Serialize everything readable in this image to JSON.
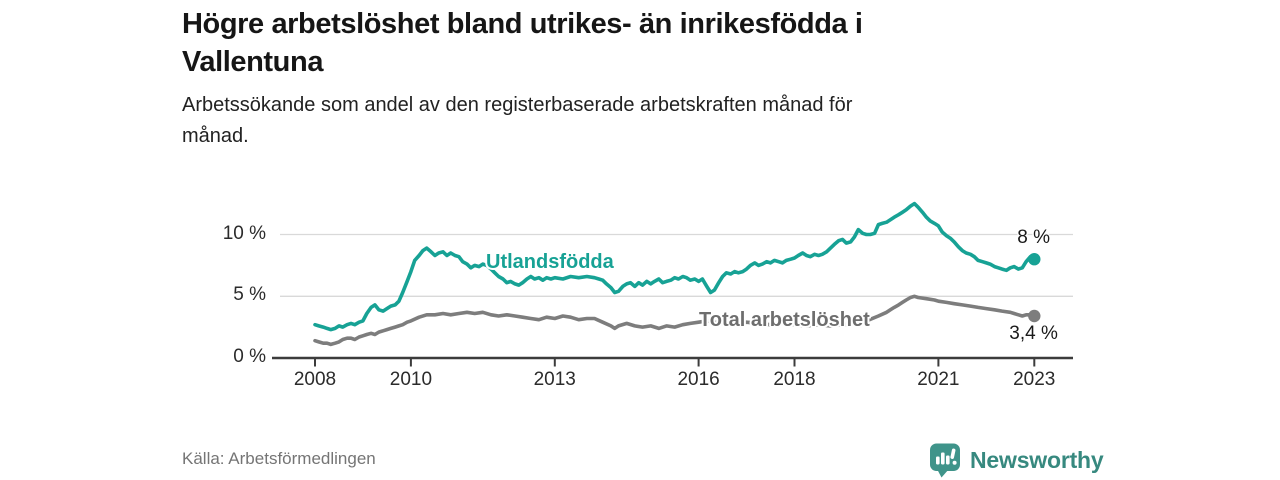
{
  "header": {
    "title": "Högre arbetslöshet bland utrikes- än inrikesfödda i Vallentuna",
    "title_lines": [
      "Högre arbetslöshet bland utrikes- än inrikesfödda i",
      "Vallentuna"
    ],
    "subtitle": "Arbetssökande som andel av den registerbaserade arbetskraften månad för månad.",
    "subtitle_lines": [
      "Arbetssökande som andel av den registerbaserade arbetskraften månad för",
      "månad."
    ]
  },
  "footer": {
    "source": "Källa: Arbetsförmedlingen"
  },
  "logo": {
    "name": "Newsworthy",
    "icon": "speech-bubble-bar-chart",
    "icon_color": "#3f948a",
    "text_color": "#37897f"
  },
  "chart_data": {
    "type": "line",
    "title": "Högre arbetslöshet bland utrikes- än inrikesfödda i Vallentuna",
    "subtitle": "Arbetssökande som andel av den registerbaserade arbetskraften månad för månad.",
    "unit": "%",
    "grid": "horizontal-only",
    "legend_position": "inline-on-lines",
    "x_axis": {
      "range_years": [
        2008,
        2023
      ],
      "ticks": [
        2008,
        2010,
        2013,
        2016,
        2018,
        2021,
        2023
      ],
      "tick_labels": [
        "2008",
        "2010",
        "2013",
        "2016",
        "2018",
        "2021",
        "2023"
      ]
    },
    "y_axis": {
      "range": [
        0,
        13.5
      ],
      "ticks": [
        0,
        5,
        10
      ],
      "tick_labels": [
        "0 %",
        "5 %",
        "10 %"
      ]
    },
    "series": [
      {
        "name": "Utlandsfödda",
        "slug": "utlandsfodda",
        "color": "#17a295",
        "label_color": "#17a295",
        "label_at": [
          2011.57,
          7.6
        ],
        "end_value": 8.0,
        "end_label": "8 %",
        "points": [
          [
            2008.0,
            2.7
          ],
          [
            2008.08,
            2.6
          ],
          [
            2008.17,
            2.5
          ],
          [
            2008.25,
            2.4
          ],
          [
            2008.33,
            2.3
          ],
          [
            2008.42,
            2.4
          ],
          [
            2008.5,
            2.6
          ],
          [
            2008.58,
            2.5
          ],
          [
            2008.67,
            2.7
          ],
          [
            2008.75,
            2.8
          ],
          [
            2008.83,
            2.7
          ],
          [
            2008.92,
            2.9
          ],
          [
            2009.0,
            3.0
          ],
          [
            2009.08,
            3.6
          ],
          [
            2009.17,
            4.1
          ],
          [
            2009.25,
            4.3
          ],
          [
            2009.33,
            3.9
          ],
          [
            2009.42,
            3.8
          ],
          [
            2009.5,
            4.0
          ],
          [
            2009.58,
            4.2
          ],
          [
            2009.67,
            4.3
          ],
          [
            2009.75,
            4.6
          ],
          [
            2009.83,
            5.3
          ],
          [
            2009.92,
            6.2
          ],
          [
            2010.0,
            7.0
          ],
          [
            2010.08,
            7.9
          ],
          [
            2010.17,
            8.3
          ],
          [
            2010.25,
            8.7
          ],
          [
            2010.33,
            8.9
          ],
          [
            2010.42,
            8.6
          ],
          [
            2010.5,
            8.3
          ],
          [
            2010.58,
            8.5
          ],
          [
            2010.67,
            8.6
          ],
          [
            2010.75,
            8.3
          ],
          [
            2010.83,
            8.5
          ],
          [
            2010.92,
            8.3
          ],
          [
            2011.0,
            8.2
          ],
          [
            2011.08,
            7.8
          ],
          [
            2011.17,
            7.6
          ],
          [
            2011.25,
            7.3
          ],
          [
            2011.33,
            7.5
          ],
          [
            2011.42,
            7.4
          ],
          [
            2011.5,
            7.6
          ],
          [
            2011.58,
            7.5
          ],
          [
            2011.67,
            7.2
          ],
          [
            2011.75,
            6.9
          ],
          [
            2011.83,
            6.6
          ],
          [
            2011.92,
            6.4
          ],
          [
            2012.0,
            6.1
          ],
          [
            2012.08,
            6.2
          ],
          [
            2012.17,
            6.0
          ],
          [
            2012.25,
            5.9
          ],
          [
            2012.33,
            6.1
          ],
          [
            2012.42,
            6.4
          ],
          [
            2012.5,
            6.6
          ],
          [
            2012.58,
            6.4
          ],
          [
            2012.67,
            6.5
          ],
          [
            2012.75,
            6.3
          ],
          [
            2012.83,
            6.5
          ],
          [
            2012.92,
            6.4
          ],
          [
            2013.0,
            6.5
          ],
          [
            2013.17,
            6.4
          ],
          [
            2013.33,
            6.6
          ],
          [
            2013.5,
            6.5
          ],
          [
            2013.67,
            6.6
          ],
          [
            2013.83,
            6.5
          ],
          [
            2013.92,
            6.4
          ],
          [
            2014.0,
            6.3
          ],
          [
            2014.08,
            6.0
          ],
          [
            2014.17,
            5.7
          ],
          [
            2014.25,
            5.3
          ],
          [
            2014.33,
            5.4
          ],
          [
            2014.42,
            5.8
          ],
          [
            2014.5,
            6.0
          ],
          [
            2014.58,
            6.1
          ],
          [
            2014.67,
            5.8
          ],
          [
            2014.75,
            6.1
          ],
          [
            2014.83,
            5.9
          ],
          [
            2014.92,
            6.2
          ],
          [
            2015.0,
            6.0
          ],
          [
            2015.08,
            6.2
          ],
          [
            2015.17,
            6.4
          ],
          [
            2015.25,
            6.1
          ],
          [
            2015.33,
            6.2
          ],
          [
            2015.42,
            6.3
          ],
          [
            2015.5,
            6.5
          ],
          [
            2015.58,
            6.4
          ],
          [
            2015.67,
            6.6
          ],
          [
            2015.75,
            6.5
          ],
          [
            2015.83,
            6.3
          ],
          [
            2015.92,
            6.4
          ],
          [
            2016.0,
            6.2
          ],
          [
            2016.08,
            6.4
          ],
          [
            2016.17,
            5.8
          ],
          [
            2016.25,
            5.3
          ],
          [
            2016.33,
            5.5
          ],
          [
            2016.42,
            6.1
          ],
          [
            2016.5,
            6.6
          ],
          [
            2016.58,
            6.9
          ],
          [
            2016.67,
            6.8
          ],
          [
            2016.75,
            7.0
          ],
          [
            2016.83,
            6.9
          ],
          [
            2016.92,
            7.0
          ],
          [
            2017.0,
            7.2
          ],
          [
            2017.08,
            7.5
          ],
          [
            2017.17,
            7.7
          ],
          [
            2017.25,
            7.5
          ],
          [
            2017.33,
            7.6
          ],
          [
            2017.42,
            7.8
          ],
          [
            2017.5,
            7.7
          ],
          [
            2017.58,
            7.9
          ],
          [
            2017.67,
            7.8
          ],
          [
            2017.75,
            7.7
          ],
          [
            2017.83,
            7.9
          ],
          [
            2017.92,
            8.0
          ],
          [
            2018.0,
            8.1
          ],
          [
            2018.08,
            8.3
          ],
          [
            2018.17,
            8.5
          ],
          [
            2018.25,
            8.3
          ],
          [
            2018.33,
            8.2
          ],
          [
            2018.42,
            8.4
          ],
          [
            2018.5,
            8.3
          ],
          [
            2018.58,
            8.4
          ],
          [
            2018.67,
            8.6
          ],
          [
            2018.75,
            8.9
          ],
          [
            2018.83,
            9.2
          ],
          [
            2018.92,
            9.5
          ],
          [
            2019.0,
            9.6
          ],
          [
            2019.08,
            9.3
          ],
          [
            2019.17,
            9.4
          ],
          [
            2019.25,
            9.8
          ],
          [
            2019.33,
            10.4
          ],
          [
            2019.42,
            10.1
          ],
          [
            2019.5,
            10.0
          ],
          [
            2019.58,
            10.0
          ],
          [
            2019.67,
            10.1
          ],
          [
            2019.75,
            10.8
          ],
          [
            2019.83,
            10.9
          ],
          [
            2019.92,
            11.0
          ],
          [
            2020.0,
            11.2
          ],
          [
            2020.08,
            11.4
          ],
          [
            2020.17,
            11.6
          ],
          [
            2020.25,
            11.8
          ],
          [
            2020.33,
            12.0
          ],
          [
            2020.42,
            12.3
          ],
          [
            2020.5,
            12.5
          ],
          [
            2020.58,
            12.2
          ],
          [
            2020.67,
            11.8
          ],
          [
            2020.75,
            11.4
          ],
          [
            2020.83,
            11.1
          ],
          [
            2020.92,
            10.9
          ],
          [
            2021.0,
            10.7
          ],
          [
            2021.08,
            10.2
          ],
          [
            2021.17,
            9.9
          ],
          [
            2021.25,
            9.7
          ],
          [
            2021.33,
            9.4
          ],
          [
            2021.42,
            9.0
          ],
          [
            2021.5,
            8.7
          ],
          [
            2021.58,
            8.5
          ],
          [
            2021.67,
            8.4
          ],
          [
            2021.75,
            8.2
          ],
          [
            2021.83,
            7.9
          ],
          [
            2021.92,
            7.8
          ],
          [
            2022.0,
            7.7
          ],
          [
            2022.08,
            7.6
          ],
          [
            2022.17,
            7.4
          ],
          [
            2022.25,
            7.3
          ],
          [
            2022.33,
            7.2
          ],
          [
            2022.42,
            7.1
          ],
          [
            2022.5,
            7.3
          ],
          [
            2022.58,
            7.4
          ],
          [
            2022.67,
            7.2
          ],
          [
            2022.75,
            7.3
          ],
          [
            2022.83,
            7.8
          ],
          [
            2022.92,
            8.2
          ],
          [
            2023.0,
            8.0
          ]
        ]
      },
      {
        "name": "Total arbetslöshet",
        "slug": "total-arbetsloshet",
        "color": "#7d7d7d",
        "label_color": "#6e6e6e",
        "label_at": [
          2016.0,
          2.95
        ],
        "end_value": 3.4,
        "end_label": "3,4 %",
        "points": [
          [
            2008.0,
            1.4
          ],
          [
            2008.08,
            1.3
          ],
          [
            2008.17,
            1.2
          ],
          [
            2008.25,
            1.2
          ],
          [
            2008.33,
            1.1
          ],
          [
            2008.42,
            1.2
          ],
          [
            2008.5,
            1.3
          ],
          [
            2008.58,
            1.5
          ],
          [
            2008.67,
            1.6
          ],
          [
            2008.75,
            1.6
          ],
          [
            2008.83,
            1.5
          ],
          [
            2008.92,
            1.7
          ],
          [
            2009.0,
            1.8
          ],
          [
            2009.08,
            1.9
          ],
          [
            2009.17,
            2.0
          ],
          [
            2009.25,
            1.9
          ],
          [
            2009.33,
            2.1
          ],
          [
            2009.42,
            2.2
          ],
          [
            2009.5,
            2.3
          ],
          [
            2009.58,
            2.4
          ],
          [
            2009.67,
            2.5
          ],
          [
            2009.75,
            2.6
          ],
          [
            2009.83,
            2.7
          ],
          [
            2009.92,
            2.9
          ],
          [
            2010.0,
            3.0
          ],
          [
            2010.17,
            3.3
          ],
          [
            2010.33,
            3.5
          ],
          [
            2010.5,
            3.5
          ],
          [
            2010.67,
            3.6
          ],
          [
            2010.83,
            3.5
          ],
          [
            2011.0,
            3.6
          ],
          [
            2011.17,
            3.7
          ],
          [
            2011.33,
            3.6
          ],
          [
            2011.5,
            3.7
          ],
          [
            2011.67,
            3.5
          ],
          [
            2011.83,
            3.4
          ],
          [
            2012.0,
            3.5
          ],
          [
            2012.17,
            3.4
          ],
          [
            2012.33,
            3.3
          ],
          [
            2012.5,
            3.2
          ],
          [
            2012.67,
            3.1
          ],
          [
            2012.83,
            3.3
          ],
          [
            2013.0,
            3.2
          ],
          [
            2013.17,
            3.4
          ],
          [
            2013.33,
            3.3
          ],
          [
            2013.5,
            3.1
          ],
          [
            2013.67,
            3.2
          ],
          [
            2013.83,
            3.2
          ],
          [
            2014.0,
            2.9
          ],
          [
            2014.17,
            2.6
          ],
          [
            2014.25,
            2.4
          ],
          [
            2014.33,
            2.6
          ],
          [
            2014.5,
            2.8
          ],
          [
            2014.67,
            2.6
          ],
          [
            2014.83,
            2.5
          ],
          [
            2015.0,
            2.6
          ],
          [
            2015.17,
            2.4
          ],
          [
            2015.33,
            2.6
          ],
          [
            2015.5,
            2.5
          ],
          [
            2015.67,
            2.7
          ],
          [
            2015.83,
            2.8
          ],
          [
            2016.0,
            2.9
          ],
          [
            2016.17,
            3.0
          ],
          [
            2016.33,
            2.9
          ],
          [
            2016.5,
            2.8
          ],
          [
            2016.67,
            2.9
          ],
          [
            2016.83,
            2.8
          ],
          [
            2017.0,
            2.9
          ],
          [
            2017.25,
            2.8
          ],
          [
            2017.5,
            2.7
          ],
          [
            2017.75,
            2.8
          ],
          [
            2018.0,
            2.7
          ],
          [
            2018.25,
            2.6
          ],
          [
            2018.5,
            2.7
          ],
          [
            2018.75,
            2.6
          ],
          [
            2019.0,
            2.7
          ],
          [
            2019.25,
            2.8
          ],
          [
            2019.5,
            3.0
          ],
          [
            2019.75,
            3.4
          ],
          [
            2019.92,
            3.7
          ],
          [
            2020.0,
            3.9
          ],
          [
            2020.08,
            4.1
          ],
          [
            2020.17,
            4.3
          ],
          [
            2020.25,
            4.5
          ],
          [
            2020.33,
            4.7
          ],
          [
            2020.42,
            4.9
          ],
          [
            2020.5,
            5.0
          ],
          [
            2020.58,
            4.9
          ],
          [
            2020.75,
            4.8
          ],
          [
            2020.92,
            4.7
          ],
          [
            2021.0,
            4.6
          ],
          [
            2021.17,
            4.5
          ],
          [
            2021.33,
            4.4
          ],
          [
            2021.5,
            4.3
          ],
          [
            2021.67,
            4.2
          ],
          [
            2021.83,
            4.1
          ],
          [
            2022.0,
            4.0
          ],
          [
            2022.17,
            3.9
          ],
          [
            2022.33,
            3.8
          ],
          [
            2022.5,
            3.7
          ],
          [
            2022.58,
            3.6
          ],
          [
            2022.67,
            3.5
          ],
          [
            2022.75,
            3.4
          ],
          [
            2022.83,
            3.5
          ],
          [
            2022.92,
            3.5
          ],
          [
            2023.0,
            3.4
          ]
        ]
      }
    ]
  }
}
